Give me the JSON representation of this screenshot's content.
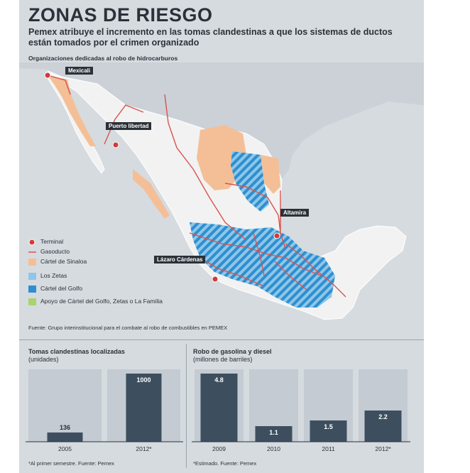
{
  "title": "ZONAS DE RIESGO",
  "subtitle": "Pemex atribuye el incremento en las tomas clandestinas a que los sistemas de ductos están tomados por el crimen organizado",
  "map": {
    "heading": "Organizaciones dedicadas al robo de hidrocarburos",
    "cities": [
      "Mexicali",
      "Puerto libertad",
      "Altamira",
      "Lázaro Cárdenas"
    ],
    "legend": [
      {
        "label": "Terminal",
        "icon": "terminal-icon",
        "color": "#d23b3b"
      },
      {
        "label": "Gasoducto",
        "icon": "pipeline-line",
        "color": "#d9534f"
      },
      {
        "label": "Cártel de Sinaloa",
        "color": "#f4bf96"
      },
      {
        "label": "Los Zetas",
        "color": "#8fc6e8"
      },
      {
        "label": "Cártel del Golfo",
        "color": "#2d8fd0"
      },
      {
        "label": "Apoyo de Cártel del Golfo, Zetas o La Familia",
        "color": "#a8d46f"
      }
    ],
    "source": "Fuente: Grupo interinstitucional para el combate al robo de combustibles en PEMEX"
  },
  "chart_data": [
    {
      "type": "bar",
      "title": "Tomas clandestinas localizadas",
      "unit": "(unidades)",
      "categories": [
        "2005",
        "2012*"
      ],
      "values": [
        136,
        1000
      ],
      "value_labels": [
        "136",
        "1000"
      ],
      "note": "*Al primer semestre. Fuente: Pemex",
      "bar_color": "#3d4f5f"
    },
    {
      "type": "bar",
      "title": "Robo de gasolina y diesel",
      "unit": "(millones de barriles)",
      "categories": [
        "2009",
        "2010",
        "2011",
        "2012*"
      ],
      "values": [
        4.8,
        1.1,
        1.5,
        2.2
      ],
      "value_labels": [
        "4.8",
        "1.1",
        "1.5",
        "2.2"
      ],
      "note": "*Estimado. Fuente: Pemex",
      "bar_color": "#3d4f5f"
    }
  ]
}
